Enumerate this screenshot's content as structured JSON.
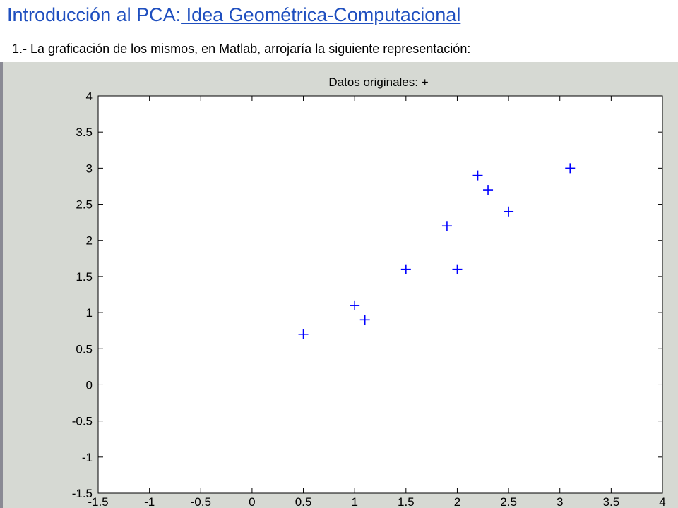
{
  "slide": {
    "title_prefix": "Introducción al PCA:",
    "title_accent": " Idea Geométrica-Computacional",
    "subtitle": "1.- La graficación de los mismos, en Matlab, arrojaría la siguiente representación:"
  },
  "colors": {
    "title": "#1f4fbf",
    "marker": "#0000ff",
    "figure_background": "#d6d9d3",
    "axes_background": "#ffffff"
  },
  "chart_data": {
    "type": "scatter",
    "title": "Datos originales: +",
    "xlabel": "",
    "ylabel": "",
    "marker": "+",
    "xlim": [
      -1.5,
      4
    ],
    "ylim": [
      -1.5,
      4
    ],
    "grid": false,
    "xticks": [
      "-1.5",
      "-1",
      "-0.5",
      "0",
      "0.5",
      "1",
      "1.5",
      "2",
      "2.5",
      "3",
      "3.5",
      "4"
    ],
    "yticks": [
      "-1.5",
      "-1",
      "-0.5",
      "0",
      "0.5",
      "1",
      "1.5",
      "2",
      "2.5",
      "3",
      "3.5",
      "4"
    ],
    "x": [
      2.5,
      0.5,
      2.2,
      1.9,
      3.1,
      2.3,
      2.0,
      1.0,
      1.5,
      1.1
    ],
    "y": [
      2.4,
      0.7,
      2.9,
      2.2,
      3.0,
      2.7,
      1.6,
      1.1,
      1.6,
      0.9
    ]
  }
}
